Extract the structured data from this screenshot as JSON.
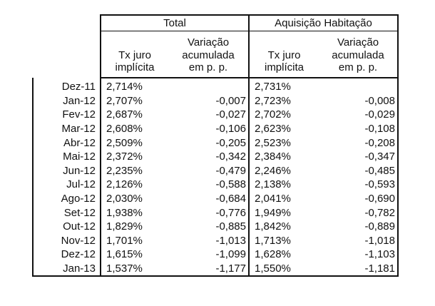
{
  "headers": {
    "groups": [
      {
        "label": "Total"
      },
      {
        "label": "Aquisição Habitação"
      }
    ],
    "subcolumns": [
      {
        "line1": "Tx juro",
        "line2": "implícita",
        "line3": ""
      },
      {
        "line1": "Variação",
        "line2": "acumulada",
        "line3": "em p. p."
      },
      {
        "line1": "Tx juro",
        "line2": "implícita",
        "line3": ""
      },
      {
        "line1": "Variação",
        "line2": "acumulada",
        "line3": "em p. p."
      }
    ]
  },
  "rows": [
    {
      "date": "Dez-11",
      "total_rate": "2,714%",
      "total_var": "",
      "hab_rate": "2,731%",
      "hab_var": ""
    },
    {
      "date": "Jan-12",
      "total_rate": "2,707%",
      "total_var": "-0,007",
      "hab_rate": "2,723%",
      "hab_var": "-0,008"
    },
    {
      "date": "Fev-12",
      "total_rate": "2,687%",
      "total_var": "-0,027",
      "hab_rate": "2,702%",
      "hab_var": "-0,029"
    },
    {
      "date": "Mar-12",
      "total_rate": "2,608%",
      "total_var": "-0,106",
      "hab_rate": "2,623%",
      "hab_var": "-0,108"
    },
    {
      "date": "Abr-12",
      "total_rate": "2,509%",
      "total_var": "-0,205",
      "hab_rate": "2,523%",
      "hab_var": "-0,208"
    },
    {
      "date": "Mai-12",
      "total_rate": "2,372%",
      "total_var": "-0,342",
      "hab_rate": "2,384%",
      "hab_var": "-0,347"
    },
    {
      "date": "Jun-12",
      "total_rate": "2,235%",
      "total_var": "-0,479",
      "hab_rate": "2,246%",
      "hab_var": "-0,485"
    },
    {
      "date": "Jul-12",
      "total_rate": "2,126%",
      "total_var": "-0,588",
      "hab_rate": "2,138%",
      "hab_var": "-0,593"
    },
    {
      "date": "Ago-12",
      "total_rate": "2,030%",
      "total_var": "-0,684",
      "hab_rate": "2,041%",
      "hab_var": "-0,690"
    },
    {
      "date": "Set-12",
      "total_rate": "1,938%",
      "total_var": "-0,776",
      "hab_rate": "1,949%",
      "hab_var": "-0,782"
    },
    {
      "date": "Out-12",
      "total_rate": "1,829%",
      "total_var": "-0,885",
      "hab_rate": "1,842%",
      "hab_var": "-0,889"
    },
    {
      "date": "Nov-12",
      "total_rate": "1,701%",
      "total_var": "-1,013",
      "hab_rate": "1,713%",
      "hab_var": "-1,018"
    },
    {
      "date": "Dez-12",
      "total_rate": "1,615%",
      "total_var": "-1,099",
      "hab_rate": "1,628%",
      "hab_var": "-1,103"
    },
    {
      "date": "Jan-13",
      "total_rate": "1,537%",
      "total_var": "-1,177",
      "hab_rate": "1,550%",
      "hab_var": "-1,181"
    }
  ]
}
